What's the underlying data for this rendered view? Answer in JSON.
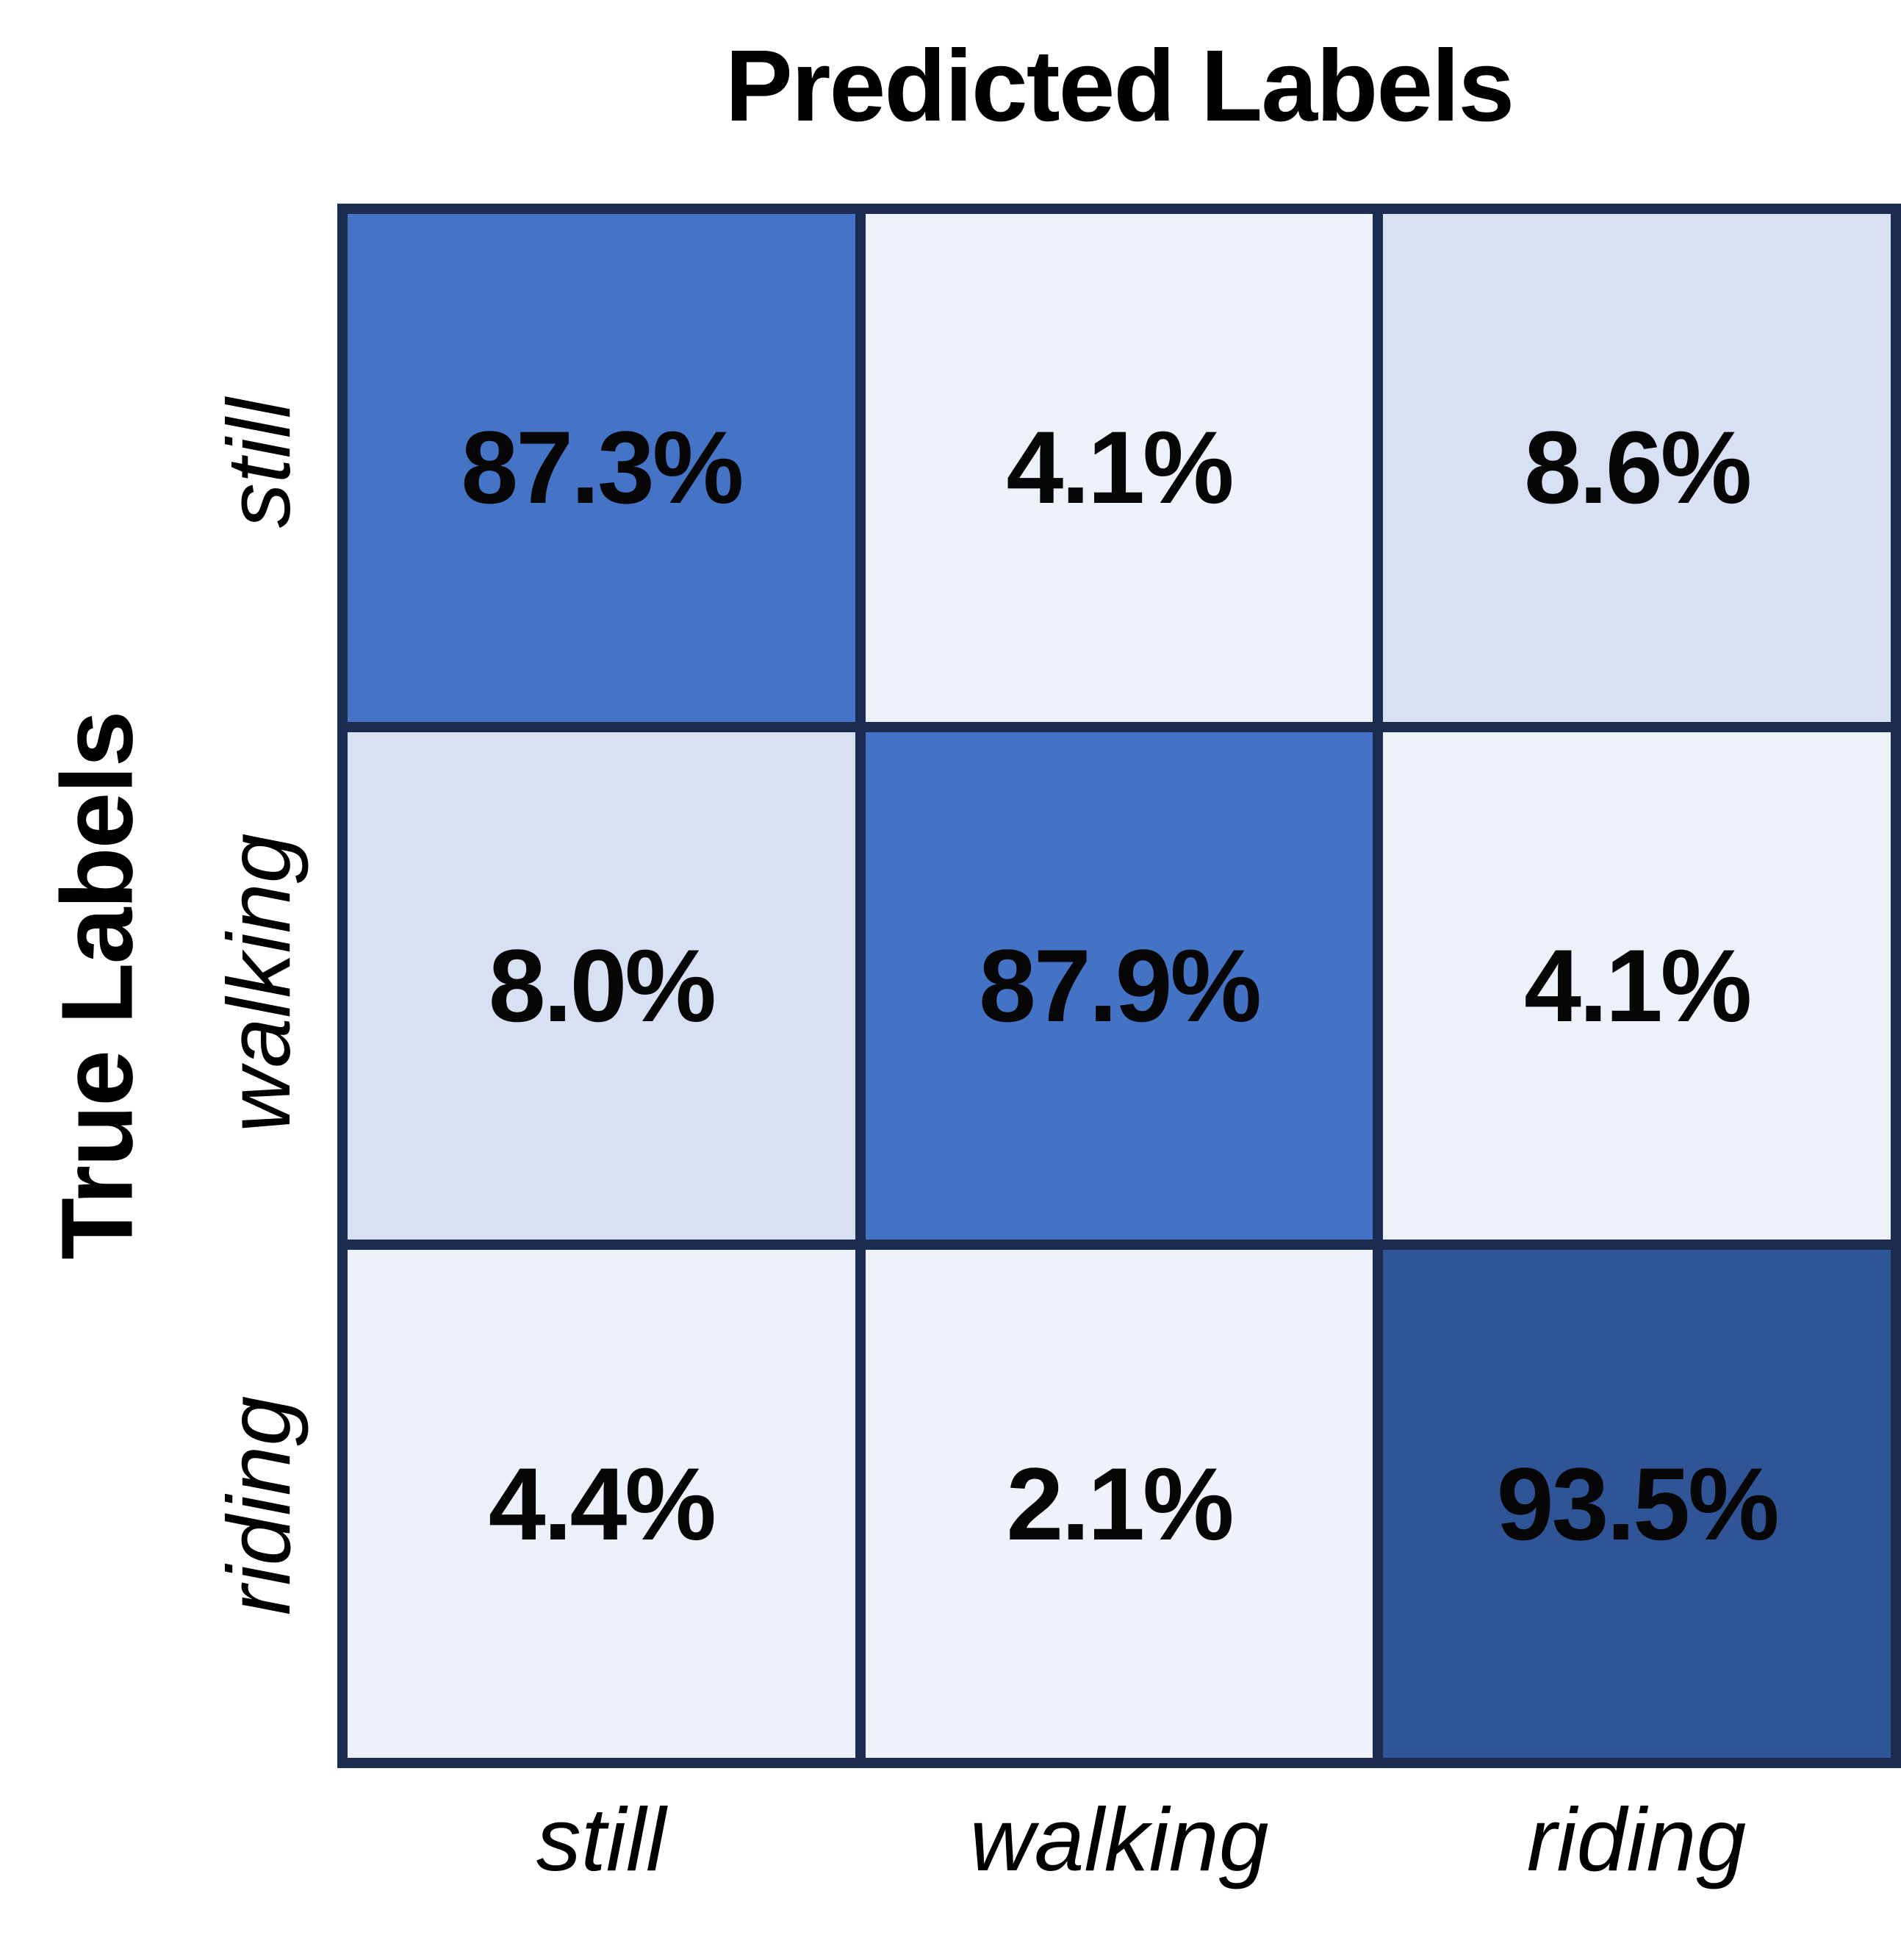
{
  "chart_data": {
    "type": "heatmap",
    "subtype": "confusion-matrix",
    "x_axis_title": "Predicted Labels",
    "y_axis_title": "True Labels",
    "row_labels": [
      "still",
      "walking",
      "riding"
    ],
    "col_labels": [
      "still",
      "walking",
      "riding"
    ],
    "values": [
      [
        87.3,
        4.1,
        8.6
      ],
      [
        8.0,
        87.9,
        4.1
      ],
      [
        4.4,
        2.1,
        93.5
      ]
    ],
    "display_values": [
      [
        "87.3%",
        "4.1%",
        "8.6%"
      ],
      [
        "8.0%",
        "87.9%",
        "4.1%"
      ],
      [
        "4.4%",
        "2.1%",
        "93.5%"
      ]
    ],
    "unit": "%",
    "value_range": [
      0,
      100
    ],
    "legend": "none",
    "grid_lines": "on",
    "cell_colors": [
      [
        "#4573c6",
        "#edf1fa",
        "#d8e1f3"
      ],
      [
        "#d8e1f3",
        "#4472c4",
        "#edf1fa"
      ],
      [
        "#ebf0f9",
        "#eff2fb",
        "#2f5597"
      ]
    ],
    "colors": {
      "border": "#1b2c50",
      "cell_text": "#060606",
      "label_text": "#000000",
      "background": "#ffffff",
      "colormap_low": "#eff2fb",
      "colormap_high": "#2f5597"
    }
  }
}
